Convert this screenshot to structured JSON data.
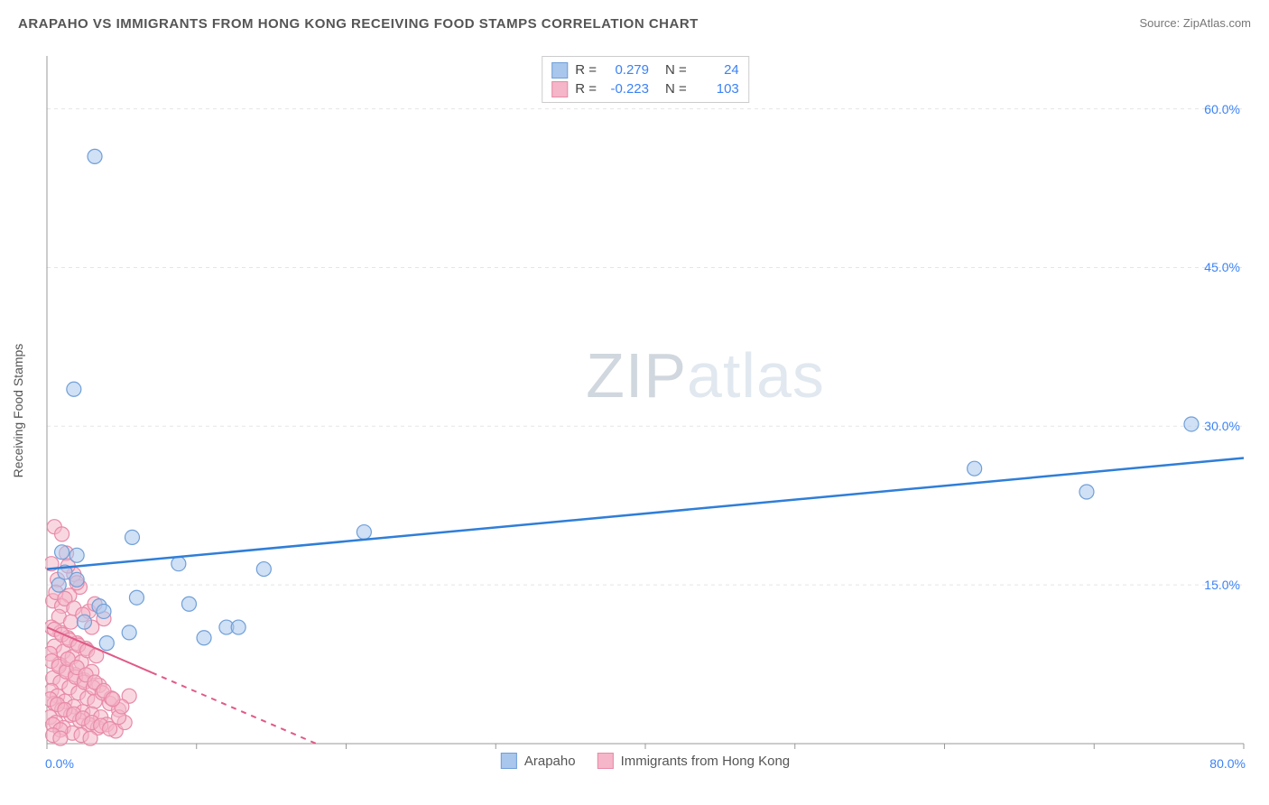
{
  "title": "ARAPAHO VS IMMIGRANTS FROM HONG KONG RECEIVING FOOD STAMPS CORRELATION CHART",
  "source": "Source: ZipAtlas.com",
  "watermark_zip": "ZIP",
  "watermark_atlas": "atlas",
  "chart": {
    "type": "scatter",
    "ylabel": "Receiving Food Stamps",
    "xlim": [
      0,
      80
    ],
    "ylim": [
      0,
      65
    ],
    "xtick_min_label": "0.0%",
    "xtick_max_label": "80.0%",
    "yticks": [
      15,
      30,
      45,
      60
    ],
    "ytick_labels": [
      "15.0%",
      "30.0%",
      "45.0%",
      "60.0%"
    ],
    "xgrid_positions": [
      0,
      10,
      20,
      30,
      40,
      50,
      60,
      70,
      80
    ],
    "background_color": "#ffffff",
    "grid_color": "#e5e5e5",
    "grid_dash": "4 4",
    "axis_color": "#999999",
    "marker_radius": 8,
    "marker_opacity": 0.55,
    "label_color": "#3b82f6",
    "series": [
      {
        "name": "Arapaho",
        "color_fill": "#a9c6ec",
        "color_stroke": "#6f9fd8",
        "trend_color": "#2f7ed8",
        "trend_width": 2.5,
        "trend_dash": "none",
        "R": "0.279",
        "N": "24",
        "trend": {
          "x1": 0,
          "y1": 16.5,
          "x2": 80,
          "y2": 27
        },
        "points": [
          [
            3.2,
            55.5
          ],
          [
            1.8,
            33.5
          ],
          [
            76.5,
            30.2
          ],
          [
            69.5,
            23.8
          ],
          [
            62.0,
            26.0
          ],
          [
            21.2,
            20.0
          ],
          [
            5.7,
            19.5
          ],
          [
            14.5,
            16.5
          ],
          [
            8.8,
            17.0
          ],
          [
            2.0,
            17.8
          ],
          [
            2.0,
            15.5
          ],
          [
            1.0,
            18.1
          ],
          [
            3.5,
            13.0
          ],
          [
            9.5,
            13.2
          ],
          [
            12.0,
            11.0
          ],
          [
            12.8,
            11.0
          ],
          [
            2.5,
            11.5
          ],
          [
            4.0,
            9.5
          ],
          [
            5.5,
            10.5
          ],
          [
            10.5,
            10.0
          ],
          [
            0.8,
            15.0
          ],
          [
            1.2,
            16.2
          ],
          [
            3.8,
            12.5
          ],
          [
            6.0,
            13.8
          ]
        ]
      },
      {
        "name": "Immigrants from Hong Kong",
        "color_fill": "#f4b6c8",
        "color_stroke": "#e88aa8",
        "trend_color": "#e05a87",
        "trend_width": 2,
        "trend_dash": "6 6",
        "R": "-0.223",
        "N": "103",
        "trend": {
          "x1": 0,
          "y1": 11.0,
          "x2": 18,
          "y2": 0
        },
        "trend_solid_to_x": 7,
        "points": [
          [
            0.5,
            20.5
          ],
          [
            1.0,
            19.8
          ],
          [
            1.3,
            18.0
          ],
          [
            0.3,
            17.0
          ],
          [
            1.8,
            16.0
          ],
          [
            0.7,
            15.5
          ],
          [
            2.2,
            14.8
          ],
          [
            1.5,
            14.0
          ],
          [
            0.4,
            13.5
          ],
          [
            1.0,
            13.0
          ],
          [
            2.8,
            12.5
          ],
          [
            0.8,
            12.0
          ],
          [
            1.6,
            11.5
          ],
          [
            3.2,
            13.2
          ],
          [
            3.8,
            11.8
          ],
          [
            0.3,
            11.0
          ],
          [
            0.9,
            10.5
          ],
          [
            1.4,
            10.0
          ],
          [
            2.0,
            9.5
          ],
          [
            2.6,
            9.0
          ],
          [
            0.5,
            9.2
          ],
          [
            1.1,
            8.7
          ],
          [
            1.7,
            8.2
          ],
          [
            2.3,
            7.7
          ],
          [
            0.2,
            8.5
          ],
          [
            0.8,
            7.5
          ],
          [
            1.3,
            7.0
          ],
          [
            1.9,
            6.5
          ],
          [
            2.5,
            6.0
          ],
          [
            3.0,
            6.8
          ],
          [
            3.5,
            5.5
          ],
          [
            0.4,
            6.2
          ],
          [
            0.9,
            5.8
          ],
          [
            1.5,
            5.3
          ],
          [
            2.1,
            4.8
          ],
          [
            2.7,
            4.3
          ],
          [
            3.2,
            4.0
          ],
          [
            0.3,
            5.0
          ],
          [
            0.7,
            4.5
          ],
          [
            1.2,
            4.0
          ],
          [
            1.8,
            3.5
          ],
          [
            2.4,
            3.0
          ],
          [
            3.0,
            2.8
          ],
          [
            3.6,
            2.5
          ],
          [
            4.2,
            3.8
          ],
          [
            4.8,
            3.2
          ],
          [
            0.5,
            3.8
          ],
          [
            1.0,
            3.2
          ],
          [
            1.6,
            2.7
          ],
          [
            2.2,
            2.2
          ],
          [
            2.8,
            1.8
          ],
          [
            3.4,
            1.5
          ],
          [
            4.0,
            1.8
          ],
          [
            4.6,
            1.2
          ],
          [
            5.2,
            2.0
          ],
          [
            5.5,
            4.5
          ],
          [
            0.2,
            2.5
          ],
          [
            0.6,
            2.0
          ],
          [
            1.1,
            1.5
          ],
          [
            1.7,
            1.0
          ],
          [
            2.3,
            0.8
          ],
          [
            2.9,
            0.5
          ],
          [
            0.4,
            1.8
          ],
          [
            0.9,
            1.3
          ],
          [
            1.4,
            16.8
          ],
          [
            2.0,
            15.2
          ],
          [
            0.6,
            14.3
          ],
          [
            1.2,
            13.7
          ],
          [
            1.8,
            12.8
          ],
          [
            2.4,
            12.2
          ],
          [
            3.0,
            11.0
          ],
          [
            0.5,
            10.8
          ],
          [
            1.0,
            10.3
          ],
          [
            1.5,
            9.8
          ],
          [
            2.1,
            9.3
          ],
          [
            2.7,
            8.8
          ],
          [
            3.3,
            8.3
          ],
          [
            0.3,
            7.8
          ],
          [
            0.8,
            7.3
          ],
          [
            1.3,
            6.8
          ],
          [
            1.9,
            6.3
          ],
          [
            2.5,
            5.8
          ],
          [
            3.1,
            5.3
          ],
          [
            3.7,
            4.8
          ],
          [
            4.3,
            4.3
          ],
          [
            0.2,
            4.2
          ],
          [
            0.7,
            3.7
          ],
          [
            1.2,
            3.2
          ],
          [
            1.8,
            2.8
          ],
          [
            2.4,
            2.4
          ],
          [
            3.0,
            2.0
          ],
          [
            3.6,
            1.7
          ],
          [
            4.2,
            1.4
          ],
          [
            4.8,
            2.5
          ],
          [
            5.0,
            3.5
          ],
          [
            0.4,
            0.8
          ],
          [
            0.9,
            0.5
          ],
          [
            1.4,
            8.0
          ],
          [
            2.0,
            7.2
          ],
          [
            2.6,
            6.5
          ],
          [
            3.2,
            5.8
          ],
          [
            3.8,
            5.0
          ],
          [
            4.4,
            4.2
          ]
        ]
      }
    ]
  },
  "legend_top": {
    "R_label": "R =",
    "N_label": "N ="
  },
  "legend_bottom": {
    "items": [
      "Arapaho",
      "Immigrants from Hong Kong"
    ]
  }
}
